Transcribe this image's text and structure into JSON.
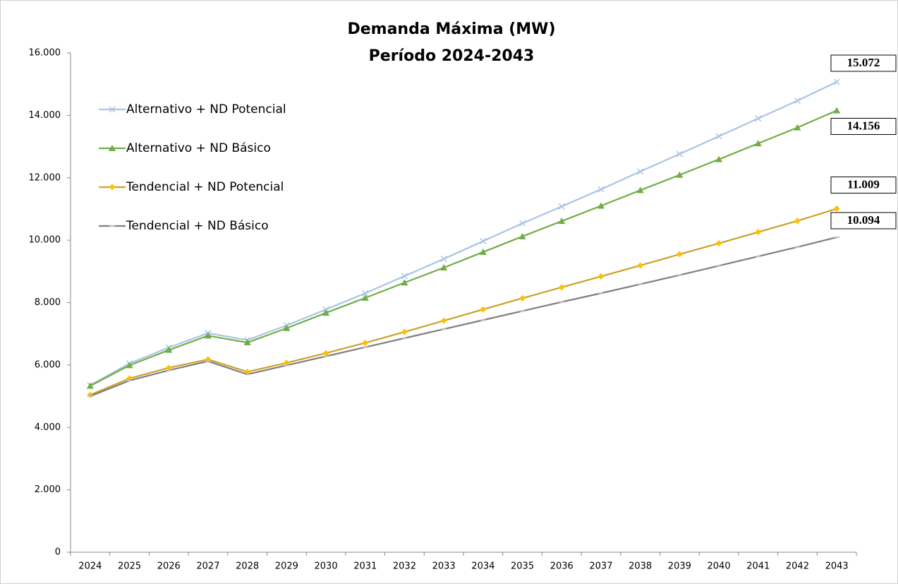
{
  "chart_data": {
    "type": "line",
    "title": [
      "Demanda Máxima (MW)",
      "Período 2024-2043"
    ],
    "categories": [
      "2024",
      "2025",
      "2026",
      "2027",
      "2028",
      "2029",
      "2030",
      "2031",
      "2032",
      "2033",
      "2034",
      "2035",
      "2036",
      "2037",
      "2038",
      "2039",
      "2040",
      "2041",
      "2042",
      "2043"
    ],
    "ylim": [
      0,
      16000
    ],
    "yticks": [
      0,
      {
        "value": 2000,
        "label": "2.000"
      },
      {
        "value": 4000,
        "label": "4.000"
      },
      {
        "value": 6000,
        "label": "6.000"
      },
      {
        "value": 8000,
        "label": "8.000"
      },
      {
        "value": 10000,
        "label": "10.000"
      },
      {
        "value": 12000,
        "label": "12.000"
      },
      {
        "value": 14000,
        "label": "14.000"
      },
      {
        "value": 16000,
        "label": "16.000"
      }
    ],
    "grid": false,
    "legend": "left",
    "series": [
      {
        "name": "Alternativo + ND Potencial",
        "color": "#a9c4e4",
        "marker": "x",
        "values": [
          5350,
          6050,
          6560,
          7020,
          6800,
          7270,
          7780,
          8300,
          8850,
          9400,
          9970,
          10540,
          11080,
          11630,
          12200,
          12760,
          13330,
          13900,
          14470,
          15072
        ],
        "value_labels": [
          null,
          null,
          null,
          null,
          null,
          null,
          null,
          null,
          null,
          null,
          null,
          null,
          null,
          null,
          null,
          null,
          null,
          null,
          null,
          "15.072"
        ]
      },
      {
        "name": "Alternativo + ND Básico",
        "color": "#70ad47",
        "marker": "triangle",
        "values": [
          5330,
          5990,
          6480,
          6940,
          6720,
          7180,
          7670,
          8150,
          8640,
          9120,
          9620,
          10120,
          10610,
          11100,
          11600,
          12090,
          12590,
          13100,
          13610,
          14156
        ],
        "value_labels": [
          null,
          null,
          null,
          null,
          null,
          null,
          null,
          null,
          null,
          null,
          null,
          null,
          null,
          null,
          null,
          null,
          null,
          null,
          null,
          "14.156"
        ]
      },
      {
        "name": "Tendencial + ND Potencial",
        "color": "#c9a227",
        "marker": "diamond",
        "values": [
          5040,
          5570,
          5910,
          6180,
          5780,
          6070,
          6380,
          6710,
          7060,
          7420,
          7780,
          8140,
          8490,
          8840,
          9190,
          9550,
          9900,
          10260,
          10620,
          11009
        ],
        "value_labels": [
          null,
          null,
          null,
          null,
          null,
          null,
          null,
          null,
          null,
          null,
          null,
          null,
          null,
          null,
          null,
          null,
          null,
          null,
          null,
          "11.009"
        ]
      },
      {
        "name": "Tendencial + ND Básico",
        "color": "#7f7f7f",
        "marker": "dash",
        "values": [
          5000,
          5500,
          5830,
          6120,
          5700,
          5990,
          6280,
          6570,
          6860,
          7150,
          7440,
          7730,
          8020,
          8300,
          8590,
          8880,
          9180,
          9480,
          9780,
          10094
        ],
        "value_labels": [
          null,
          null,
          null,
          null,
          null,
          null,
          null,
          null,
          null,
          null,
          null,
          null,
          null,
          null,
          null,
          null,
          null,
          null,
          null,
          "10.094"
        ]
      }
    ]
  }
}
